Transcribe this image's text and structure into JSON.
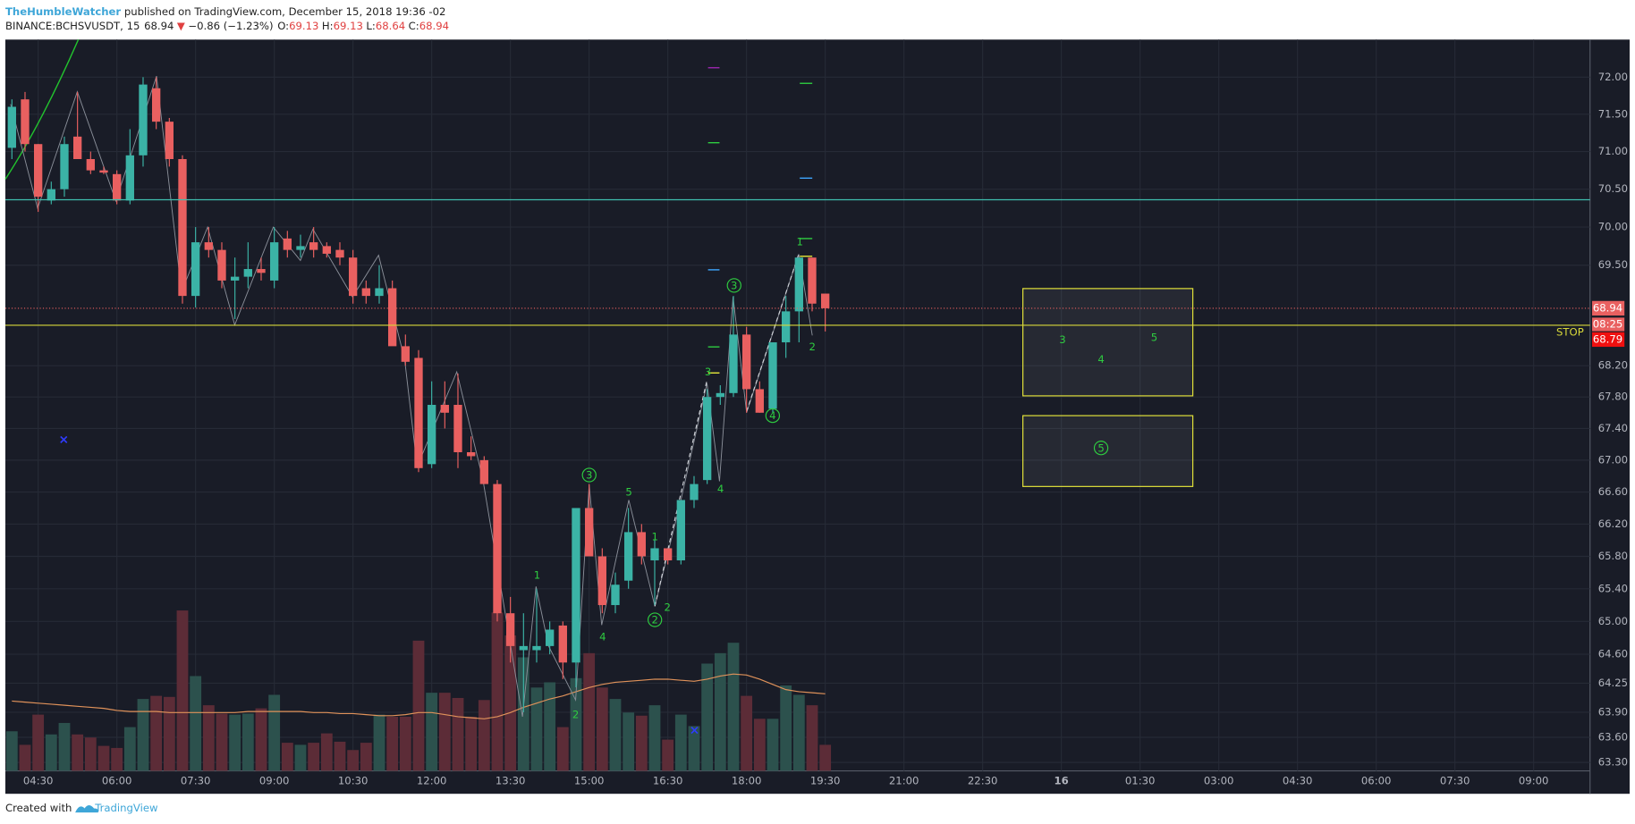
{
  "header": {
    "author": "TheHumbleWatcher",
    "published": " published on TradingView.com, December 15, 2018 19:36 -02",
    "symbol": "BINANCE:BCHSVUSDT, 15",
    "arrow": "▼",
    "change": "−0.86 (−1.23%)",
    "o_label": "O:",
    "h_label": "H:",
    "l_label": "L:",
    "c_label": "C:"
  },
  "footer": {
    "created": "Created with",
    "brand": "TradingView"
  },
  "chart_data": {
    "type": "candlestick",
    "log_scale": true,
    "grid": true,
    "up_color": "#3bb3a6",
    "down_color": "#e96060",
    "up_volume_color": "#2c514d",
    "down_volume_color": "#5c2c37",
    "volume_ma_color": "#e0925a",
    "open": [
      71.05,
      71.7,
      71.1,
      70.35,
      70.5,
      71.2,
      70.9,
      70.75,
      70.7,
      70.35,
      70.95,
      71.85,
      71.4,
      70.9,
      69.1,
      69.8,
      69.7,
      69.3,
      69.35,
      69.45,
      69.3,
      69.85,
      69.7,
      69.8,
      69.75,
      69.7,
      69.6,
      69.2,
      69.1,
      69.2,
      68.45,
      68.3,
      66.95,
      67.7,
      67.7,
      67.1,
      67.0,
      66.7,
      65.1,
      64.65,
      64.65,
      64.7,
      64.95,
      64.5,
      66.4,
      65.8,
      65.2,
      65.5,
      66.1,
      65.75,
      65.9,
      65.75,
      66.5,
      66.75,
      67.8,
      67.85,
      68.6,
      67.9,
      67.65,
      68.5,
      68.9,
      69.6,
      69.13
    ],
    "high": [
      71.7,
      71.8,
      71.1,
      70.6,
      71.2,
      71.8,
      71.0,
      70.8,
      70.75,
      71.3,
      72.0,
      72.0,
      71.45,
      70.95,
      70.0,
      70.0,
      69.8,
      69.6,
      69.8,
      69.6,
      70.0,
      69.95,
      69.9,
      70.0,
      69.8,
      69.8,
      69.7,
      69.3,
      69.5,
      69.3,
      68.6,
      68.4,
      68.0,
      68.0,
      68.1,
      67.3,
      67.05,
      66.75,
      65.3,
      65.1,
      65.4,
      65.0,
      65.0,
      66.4,
      66.7,
      65.9,
      65.6,
      66.4,
      66.2,
      66.0,
      65.9,
      66.5,
      66.8,
      67.9,
      67.95,
      69.1,
      68.7,
      68.0,
      68.5,
      69.1,
      69.6,
      69.6,
      69.13
    ],
    "low": [
      70.9,
      71.0,
      70.2,
      70.3,
      70.4,
      70.9,
      70.7,
      70.7,
      70.3,
      70.3,
      70.8,
      71.3,
      70.8,
      69.0,
      68.95,
      69.6,
      69.2,
      68.8,
      69.2,
      69.3,
      69.2,
      69.6,
      69.6,
      69.6,
      69.6,
      69.5,
      69.0,
      69.0,
      69.0,
      68.5,
      68.2,
      66.85,
      66.9,
      67.4,
      66.9,
      67.0,
      66.7,
      65.0,
      64.5,
      63.9,
      64.5,
      64.6,
      64.3,
      64.2,
      65.8,
      65.1,
      65.1,
      65.4,
      65.7,
      65.2,
      65.7,
      65.7,
      66.4,
      66.7,
      67.7,
      67.8,
      67.6,
      67.6,
      67.6,
      68.3,
      68.5,
      68.9,
      68.64
    ],
    "close": [
      71.6,
      71.1,
      70.4,
      70.5,
      71.1,
      70.9,
      70.75,
      70.72,
      70.35,
      70.95,
      71.9,
      71.4,
      70.9,
      69.1,
      69.8,
      69.7,
      69.3,
      69.35,
      69.45,
      69.4,
      69.8,
      69.7,
      69.75,
      69.7,
      69.65,
      69.6,
      69.1,
      69.1,
      69.2,
      68.45,
      68.25,
      66.9,
      67.7,
      67.6,
      67.1,
      67.05,
      66.7,
      65.1,
      64.7,
      64.7,
      64.7,
      64.9,
      64.5,
      66.4,
      65.8,
      65.2,
      65.45,
      66.1,
      65.8,
      65.9,
      65.75,
      66.5,
      66.7,
      67.8,
      67.85,
      68.6,
      67.9,
      67.6,
      68.5,
      68.9,
      69.6,
      69.0,
      68.94
    ],
    "volume": [
      38,
      25,
      54,
      35,
      46,
      35,
      32,
      24,
      22,
      42,
      69,
      72,
      71,
      154,
      91,
      63,
      55,
      54,
      55,
      60,
      73,
      27,
      25,
      27,
      36,
      28,
      20,
      27,
      54,
      52,
      52,
      125,
      75,
      75,
      70,
      52,
      68,
      152,
      130,
      109,
      80,
      85,
      42,
      89,
      113,
      80,
      69,
      56,
      53,
      63,
      30,
      54,
      43,
      103,
      113,
      123,
      72,
      50,
      50,
      82,
      73,
      63,
      25
    ],
    "volume_ma": [
      67,
      66,
      65,
      64,
      63,
      62,
      61,
      60,
      58,
      57,
      57,
      57,
      56,
      56,
      56,
      56,
      56,
      56,
      57,
      57,
      57,
      57,
      57,
      56,
      56,
      55,
      55,
      54,
      53,
      53,
      54,
      56,
      56,
      54,
      52,
      51,
      50,
      52,
      56,
      61,
      65,
      69,
      72,
      76,
      80,
      83,
      85,
      86,
      87,
      88,
      88,
      87,
      86,
      88,
      91,
      93,
      92,
      88,
      83,
      78,
      76,
      75,
      74
    ],
    "volume_ylim": [
      0,
      702
    ],
    "ylim": [
      63.2,
      72.51
    ],
    "yticks": [
      {
        "value": 72,
        "label": "72.00"
      },
      {
        "value": 71.5,
        "label": "71.50"
      },
      {
        "value": 71,
        "label": "71.00"
      },
      {
        "value": 70.5,
        "label": "70.50"
      },
      {
        "value": 70,
        "label": "70.00"
      },
      {
        "value": 69.5,
        "label": "69.50"
      },
      {
        "value": 68.2,
        "label": "68.20"
      },
      {
        "value": 67.8,
        "label": "67.80"
      },
      {
        "value": 67.4,
        "label": "67.40"
      },
      {
        "value": 67,
        "label": "67.00"
      },
      {
        "value": 66.6,
        "label": "66.60"
      },
      {
        "value": 66.2,
        "label": "66.20"
      },
      {
        "value": 65.8,
        "label": "65.80"
      },
      {
        "value": 65.4,
        "label": "65.40"
      },
      {
        "value": 65,
        "label": "65.00"
      },
      {
        "value": 64.6,
        "label": "64.60"
      },
      {
        "value": 64.25,
        "label": "64.25"
      },
      {
        "value": 63.9,
        "label": "63.90"
      },
      {
        "value": 63.6,
        "label": "63.60"
      },
      {
        "value": 63.3,
        "label": "63.30"
      }
    ],
    "xlim": [
      -0.5,
      120.3
    ],
    "xticks": [
      {
        "value": 2,
        "label": "04:30"
      },
      {
        "value": 8,
        "label": "06:00"
      },
      {
        "value": 14,
        "label": "07:30"
      },
      {
        "value": 20,
        "label": "09:00"
      },
      {
        "value": 26,
        "label": "10:30"
      },
      {
        "value": 32,
        "label": "12:00"
      },
      {
        "value": 38,
        "label": "13:30"
      },
      {
        "value": 44,
        "label": "15:00"
      },
      {
        "value": 50,
        "label": "16:30"
      },
      {
        "value": 56,
        "label": "18:00"
      },
      {
        "value": 62,
        "label": "19:30"
      },
      {
        "value": 68,
        "label": "21:00"
      },
      {
        "value": 74,
        "label": "22:30"
      },
      {
        "value": 80,
        "label": "16"
      },
      {
        "value": 86,
        "label": "01:30"
      },
      {
        "value": 92,
        "label": "03:00"
      },
      {
        "value": 98,
        "label": "04:30"
      },
      {
        "value": 104,
        "label": "06:00"
      },
      {
        "value": 110,
        "label": "07:30"
      },
      {
        "value": 116,
        "label": "09:00"
      }
    ],
    "levels": [
      {
        "value": 70.36,
        "color": "#3fbfae"
      },
      {
        "value": 68.72,
        "color": "#d8d83a",
        "label": "STOP"
      }
    ],
    "countdown": "08:25",
    "bid_label": "68.79",
    "wave_labels": [
      "1",
      "2",
      "3",
      "4",
      "5",
      "1",
      "2",
      "2",
      "3",
      "4",
      "3",
      "4",
      "2",
      "1",
      "3",
      "4",
      "5",
      "5"
    ]
  }
}
